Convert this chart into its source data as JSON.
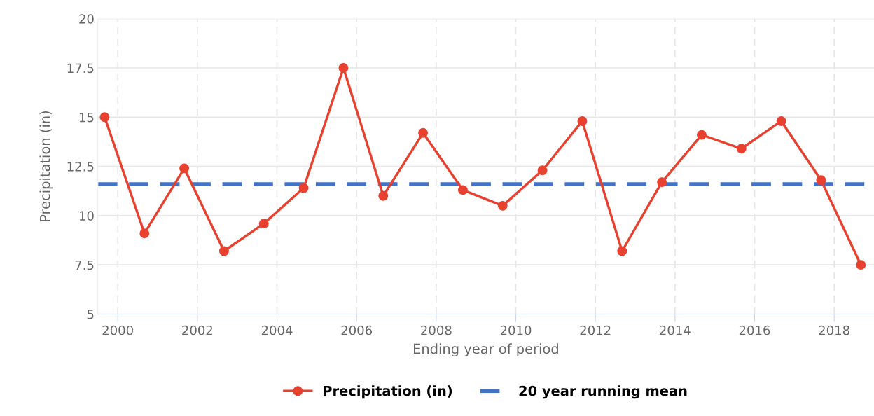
{
  "chart_data": {
    "type": "line",
    "xlabel": "Ending year of period",
    "ylabel": "Precipitation (in)",
    "xlim": [
      1999.5,
      2019
    ],
    "xticks": [
      2000,
      2002,
      2004,
      2006,
      2008,
      2010,
      2012,
      2014,
      2016,
      2018
    ],
    "ylim": [
      5,
      20
    ],
    "yticks": [
      5,
      7.5,
      10,
      12.5,
      15,
      17.5,
      20
    ],
    "grid": true,
    "legend": "bottom",
    "series": [
      {
        "name": "Precipitation (in)",
        "color": "#e8412f",
        "marker": "circle",
        "line_style": "solid",
        "x": [
          1999.67,
          2000.67,
          2001.67,
          2002.67,
          2003.67,
          2004.67,
          2005.67,
          2006.67,
          2007.67,
          2008.67,
          2009.67,
          2010.67,
          2011.67,
          2012.67,
          2013.67,
          2014.67,
          2015.67,
          2016.67,
          2017.67,
          2018.67
        ],
        "values": [
          15.0,
          9.1,
          12.4,
          8.2,
          9.6,
          11.4,
          17.5,
          11.0,
          14.2,
          11.3,
          10.5,
          12.3,
          14.8,
          8.2,
          11.7,
          14.1,
          13.4,
          14.8,
          11.8,
          7.5
        ]
      }
    ],
    "ref_lines": [
      {
        "axis": "y",
        "value": 11.6,
        "label": "20 year running mean",
        "color": "#4472c4",
        "line_style": "dashed"
      }
    ]
  }
}
